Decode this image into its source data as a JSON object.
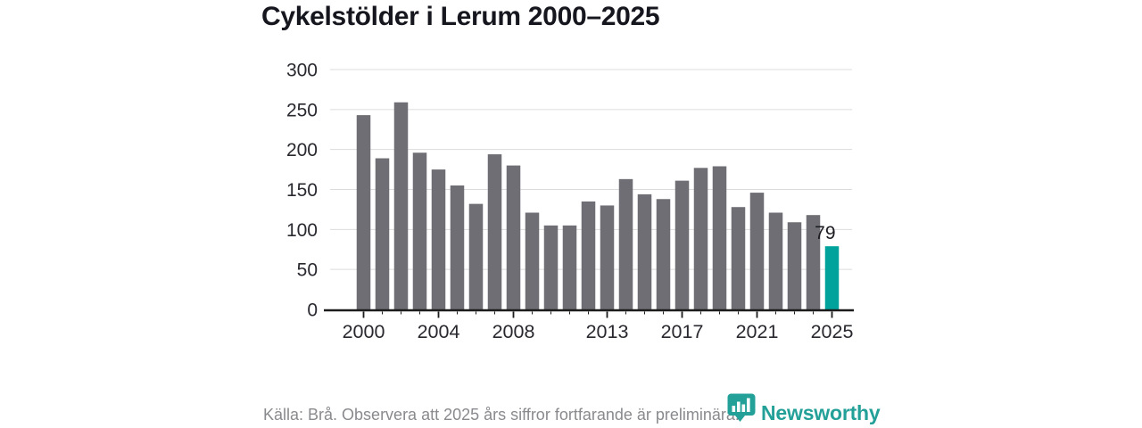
{
  "title": "Cykelstölder i Lerum 2000–2025",
  "chart_data": {
    "type": "bar",
    "categories": [
      2000,
      2001,
      2002,
      2003,
      2004,
      2005,
      2006,
      2007,
      2008,
      2009,
      2010,
      2011,
      2012,
      2013,
      2014,
      2015,
      2016,
      2017,
      2018,
      2019,
      2020,
      2021,
      2022,
      2023,
      2024,
      2025
    ],
    "values": [
      243,
      189,
      259,
      196,
      175,
      155,
      132,
      194,
      180,
      121,
      105,
      105,
      135,
      130,
      163,
      144,
      138,
      161,
      177,
      179,
      128,
      146,
      121,
      109,
      118,
      79
    ],
    "title": "Cykelstölder i Lerum 2000–2025",
    "xlabel": "",
    "ylabel": "",
    "ylim": [
      0,
      300
    ],
    "y_ticks": [
      0,
      50,
      100,
      150,
      200,
      250,
      300
    ],
    "x_tick_labels": [
      "2000",
      "2004",
      "2008",
      "2013",
      "2017",
      "2021",
      "2025"
    ],
    "grid": true,
    "legend": "none",
    "bar_color": "#6e6e74",
    "highlight_color": "#00a39b",
    "highlight_index": 25,
    "data_label": {
      "index": 25,
      "text": "79"
    },
    "axis_text_color": "#28282f",
    "gridline_color": "#dcdcdc",
    "baseline_color": "#1c1c1c"
  },
  "footer": {
    "source_text": "Källa: Brå. Observera att 2025 års siffror fortfarande är preliminära.",
    "brand": "Newsworthy"
  },
  "icons": {
    "brand_logo": "newsworthy-badge-barchart-icon"
  }
}
